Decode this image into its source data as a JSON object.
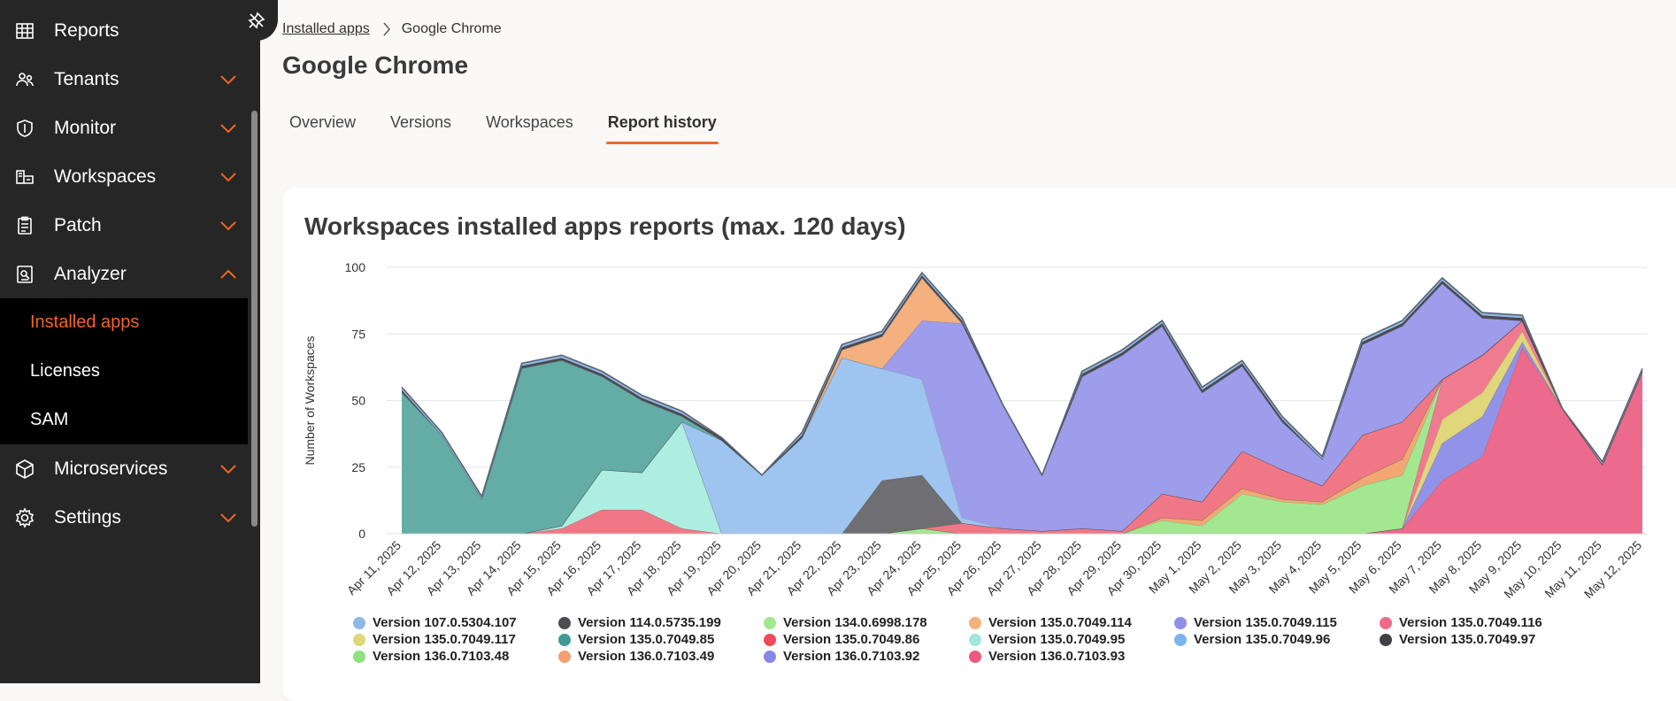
{
  "sidebar": {
    "items": [
      {
        "label": "Reports",
        "icon": "reports-grid-icon",
        "expand": "none"
      },
      {
        "label": "Tenants",
        "icon": "tenants-icon",
        "expand": "down"
      },
      {
        "label": "Monitor",
        "icon": "shield-icon",
        "expand": "down"
      },
      {
        "label": "Workspaces",
        "icon": "workspaces-icon",
        "expand": "down"
      },
      {
        "label": "Patch",
        "icon": "clipboard-icon",
        "expand": "down"
      },
      {
        "label": "Analyzer",
        "icon": "analyzer-icon",
        "expand": "up"
      },
      {
        "label": "Microservices",
        "icon": "cube-icon",
        "expand": "down"
      },
      {
        "label": "Settings",
        "icon": "gear-icon",
        "expand": "down"
      }
    ],
    "submenu": [
      {
        "label": "Installed apps",
        "active": true
      },
      {
        "label": "Licenses",
        "active": false
      },
      {
        "label": "SAM",
        "active": false
      }
    ],
    "accent": "#f26522"
  },
  "breadcrumb": {
    "parent": "Installed apps",
    "current": "Google Chrome"
  },
  "page": {
    "title": "Google Chrome"
  },
  "tabs": [
    {
      "label": "Overview",
      "active": false
    },
    {
      "label": "Versions",
      "active": false
    },
    {
      "label": "Workspaces",
      "active": false
    },
    {
      "label": "Report history",
      "active": true
    }
  ],
  "chart_data": {
    "type": "area",
    "title": "Workspaces installed apps reports (max. 120 days)",
    "ylabel": "Number of Workspaces",
    "xlabel": "",
    "ylim": [
      0,
      100
    ],
    "yticks": [
      0,
      25,
      50,
      75,
      100
    ],
    "grid": true,
    "stacked": true,
    "legend_position": "bottom",
    "categories": [
      "Apr 11, 2025",
      "Apr 12, 2025",
      "Apr 13, 2025",
      "Apr 14, 2025",
      "Apr 15, 2025",
      "Apr 16, 2025",
      "Apr 17, 2025",
      "Apr 18, 2025",
      "Apr 19, 2025",
      "Apr 20, 2025",
      "Apr 21, 2025",
      "Apr 22, 2025",
      "Apr 23, 2025",
      "Apr 24, 2025",
      "Apr 25, 2025",
      "Apr 26, 2025",
      "Apr 27, 2025",
      "Apr 28, 2025",
      "Apr 29, 2025",
      "Apr 30, 2025",
      "May 1, 2025",
      "May 2, 2025",
      "May 3, 2025",
      "May 4, 2025",
      "May 5, 2025",
      "May 6, 2025",
      "May 7, 2025",
      "May 8, 2025",
      "May 9, 2025",
      "May 10, 2025",
      "May 11, 2025",
      "May 12, 2025"
    ],
    "series": [
      {
        "name": "Version 136.0.7103.93",
        "color": "#ec6a8c",
        "values": [
          0,
          0,
          0,
          0,
          0,
          0,
          0,
          0,
          0,
          0,
          0,
          0,
          0,
          0,
          0,
          0,
          0,
          0,
          0,
          0,
          0,
          0,
          0,
          0,
          0,
          2,
          20,
          29,
          70,
          47,
          26,
          61
        ]
      },
      {
        "name": "Version 135.0.7049.115",
        "color": "#9293e8",
        "values": [
          0,
          0,
          0,
          0,
          0,
          0,
          0,
          0,
          0,
          0,
          0,
          0,
          0,
          0,
          0,
          0,
          0,
          0,
          0,
          0,
          0,
          0,
          0,
          0,
          0,
          0,
          14,
          15,
          2,
          0,
          0,
          0
        ]
      },
      {
        "name": "Version 135.0.7049.117",
        "color": "#e0d67a",
        "values": [
          0,
          0,
          0,
          0,
          0,
          0,
          0,
          0,
          0,
          0,
          0,
          0,
          0,
          0,
          0,
          0,
          0,
          0,
          0,
          0,
          0,
          0,
          0,
          0,
          0,
          0,
          9,
          9,
          4,
          0,
          0,
          0
        ]
      },
      {
        "name": "Version 135.0.7049.116",
        "color": "#f07a90",
        "values": [
          0,
          0,
          0,
          0,
          0,
          0,
          0,
          0,
          0,
          0,
          0,
          0,
          0,
          0,
          0,
          0,
          0,
          0,
          0,
          0,
          0,
          0,
          0,
          0,
          0,
          0,
          15,
          14,
          4,
          0,
          0,
          0
        ]
      },
      {
        "name": "Version 134.0.6998.178",
        "color": "#a3e890",
        "values": [
          0,
          0,
          0,
          0,
          0,
          0,
          0,
          0,
          0,
          0,
          0,
          0,
          0,
          2,
          0,
          0,
          0,
          0,
          0,
          5,
          3,
          15,
          12,
          11,
          18,
          20,
          0,
          0,
          0,
          0,
          0,
          0
        ]
      },
      {
        "name": "Version 136.0.7103.49",
        "color": "#f3a873",
        "values": [
          0,
          0,
          0,
          0,
          0,
          0,
          0,
          0,
          0,
          0,
          0,
          0,
          0,
          0,
          0,
          0,
          0,
          0,
          0,
          1,
          2,
          2,
          1,
          1,
          3,
          6,
          0,
          0,
          0,
          0,
          0,
          0
        ]
      },
      {
        "name": "Version 136.0.7103.48",
        "color": "#8fe07f",
        "values": [
          0,
          0,
          0,
          0,
          0,
          0,
          0,
          0,
          0,
          0,
          0,
          0,
          0,
          0,
          0,
          0,
          0,
          0,
          0,
          0,
          0,
          0,
          0,
          0,
          0,
          0,
          0,
          0,
          0,
          0,
          0,
          0
        ]
      },
      {
        "name": "Version 135.0.7049.86",
        "color": "#f07886",
        "values": [
          0,
          0,
          0,
          0,
          2,
          9,
          9,
          2,
          0,
          0,
          0,
          0,
          0,
          0,
          4,
          2,
          1,
          2,
          1,
          9,
          7,
          14,
          11,
          6,
          16,
          14,
          0,
          0,
          0,
          0,
          0,
          0
        ]
      },
      {
        "name": "Version 135.0.7049.95",
        "color": "#aeeee0",
        "values": [
          0,
          0,
          0,
          0,
          1,
          15,
          14,
          40,
          0,
          0,
          0,
          0,
          0,
          0,
          0,
          0,
          0,
          0,
          0,
          0,
          0,
          0,
          0,
          0,
          0,
          0,
          0,
          0,
          0,
          0,
          0,
          0
        ]
      },
      {
        "name": "Version 114.0.5735.199",
        "color": "#6e6e73",
        "values": [
          0,
          0,
          0,
          0,
          0,
          0,
          0,
          0,
          0,
          0,
          0,
          0,
          20,
          20,
          0,
          0,
          0,
          0,
          0,
          0,
          0,
          0,
          0,
          0,
          0,
          0,
          0,
          0,
          0,
          0,
          0,
          0
        ]
      },
      {
        "name": "Version 135.0.7049.96",
        "color": "#9ec5f0",
        "values": [
          0,
          0,
          0,
          0,
          0,
          0,
          0,
          0,
          35,
          22,
          36,
          66,
          42,
          36,
          2,
          0,
          0,
          0,
          0,
          0,
          0,
          0,
          0,
          0,
          0,
          0,
          0,
          0,
          0,
          0,
          0,
          0
        ]
      },
      {
        "name": "Version 136.0.7103.92",
        "color": "#9d9deb",
        "values": [
          0,
          0,
          0,
          0,
          0,
          0,
          0,
          0,
          0,
          0,
          0,
          0,
          0,
          22,
          73,
          47,
          21,
          57,
          66,
          63,
          41,
          32,
          18,
          10,
          34,
          36,
          36,
          14,
          0,
          0,
          0,
          0
        ]
      },
      {
        "name": "Version 135.0.7049.114",
        "color": "#f4b07e",
        "values": [
          0,
          0,
          0,
          0,
          0,
          0,
          0,
          0,
          0,
          0,
          0,
          3,
          12,
          16,
          0,
          0,
          0,
          0,
          0,
          0,
          0,
          0,
          0,
          0,
          0,
          0,
          0,
          0,
          0,
          0,
          0,
          0
        ]
      },
      {
        "name": "Version 135.0.7049.85",
        "color": "#63ada6",
        "values": [
          53,
          37,
          13,
          62,
          62,
          35,
          27,
          2,
          0,
          0,
          0,
          0,
          0,
          0,
          0,
          0,
          0,
          0,
          0,
          0,
          0,
          0,
          0,
          0,
          0,
          0,
          0,
          0,
          0,
          0,
          0,
          0
        ]
      },
      {
        "name": "Version 135.0.7049.97",
        "color": "#4a4a4f",
        "values": [
          1,
          0,
          0,
          1,
          1,
          1,
          1,
          1,
          1,
          0,
          1,
          1,
          1,
          1,
          1,
          0,
          0,
          1,
          1,
          1,
          1,
          1,
          1,
          0,
          1,
          1,
          1,
          1,
          1,
          0,
          0,
          0
        ]
      },
      {
        "name": "Version 107.0.5304.107",
        "color": "#8fb8e6",
        "values": [
          1,
          1,
          1,
          1,
          1,
          1,
          1,
          1,
          0,
          0,
          1,
          1,
          1,
          1,
          1,
          0,
          0,
          1,
          1,
          1,
          1,
          1,
          1,
          1,
          1,
          1,
          1,
          1,
          1,
          0,
          1,
          1
        ]
      }
    ],
    "legend": [
      {
        "name": "Version 107.0.5304.107",
        "color": "#8fb8e6"
      },
      {
        "name": "Version 114.0.5735.199",
        "color": "#4d4d52"
      },
      {
        "name": "Version 134.0.6998.178",
        "color": "#a3e890"
      },
      {
        "name": "Version 135.0.7049.114",
        "color": "#f4b07e"
      },
      {
        "name": "Version 135.0.7049.115",
        "color": "#8f8fe8"
      },
      {
        "name": "Version 135.0.7049.116",
        "color": "#f06a8c"
      },
      {
        "name": "Version 135.0.7049.117",
        "color": "#e0d67a"
      },
      {
        "name": "Version 135.0.7049.85",
        "color": "#3f9a93"
      },
      {
        "name": "Version 135.0.7049.86",
        "color": "#f04a5a"
      },
      {
        "name": "Version 135.0.7049.95",
        "color": "#9ee8dc"
      },
      {
        "name": "Version 135.0.7049.96",
        "color": "#7ab5ec"
      },
      {
        "name": "Version 135.0.7049.97",
        "color": "#404045"
      },
      {
        "name": "Version 136.0.7103.48",
        "color": "#8fe07f"
      },
      {
        "name": "Version 136.0.7103.49",
        "color": "#f3a073"
      },
      {
        "name": "Version 136.0.7103.92",
        "color": "#8787e6"
      },
      {
        "name": "Version 136.0.7103.93",
        "color": "#ec5a80"
      }
    ]
  }
}
